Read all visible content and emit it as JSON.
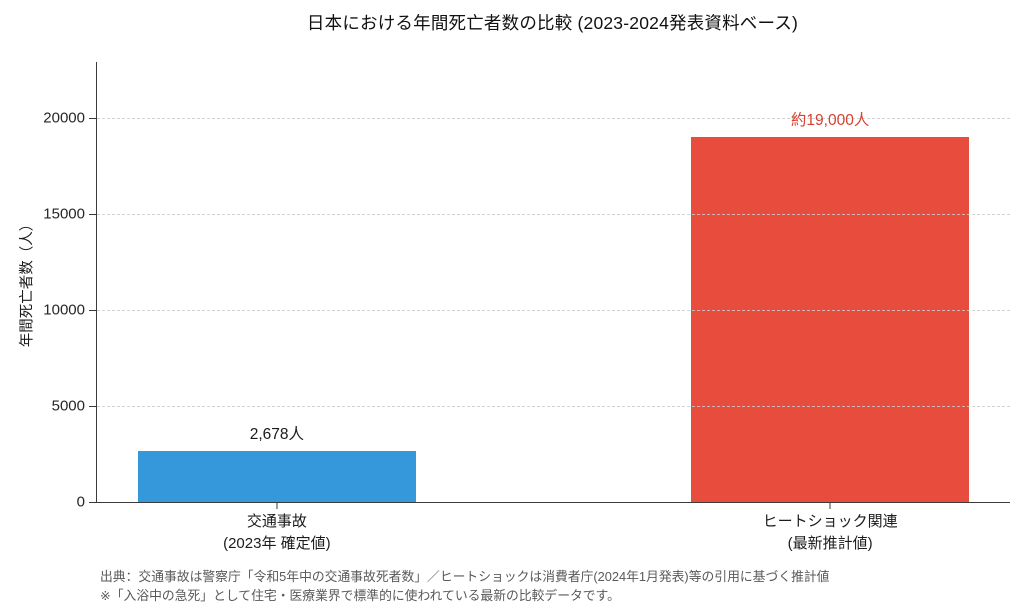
{
  "title": "日本における年間死亡者数の比較 (2023-2024発表資料ベース)",
  "chart_data": {
    "type": "bar",
    "title": "日本における年間死亡者数の比較 (2023-2024発表資料ベース)",
    "categories": [
      "交通事故",
      "ヒートショック関連"
    ],
    "category_sublabels": [
      "(2023年 確定値)",
      "(最新推計値)"
    ],
    "values": [
      2678,
      19000
    ],
    "value_labels": [
      "2,678人",
      "約19,000人"
    ],
    "value_label_colors": [
      "#1a1a1a",
      "#d8402f"
    ],
    "bar_colors": [
      "#3498db",
      "#e74c3c"
    ],
    "xlabel": "",
    "ylabel": "年間死亡者数（人）",
    "yticks": [
      0,
      5000,
      10000,
      15000,
      20000
    ],
    "ylim": [
      0,
      22900
    ],
    "grid": "horizontal-dashed",
    "legend": "none"
  },
  "footnote": {
    "line1": "出典：交通事故は警察庁「令和5年中の交通事故死者数」／ヒートショックは消費者庁(2024年1月発表)等の引用に基づく推計値",
    "line2": "※「入浴中の急死」として住宅・医療業界で標準的に使われている最新の比較データです。"
  },
  "colors": {
    "background": "#ffffff",
    "bar_blue": "#3498db",
    "bar_red": "#e74c3c",
    "red_label": "#d8402f",
    "grid": "#cacaca",
    "axis": "#3a3a3a",
    "footnote_text": "#595959"
  }
}
